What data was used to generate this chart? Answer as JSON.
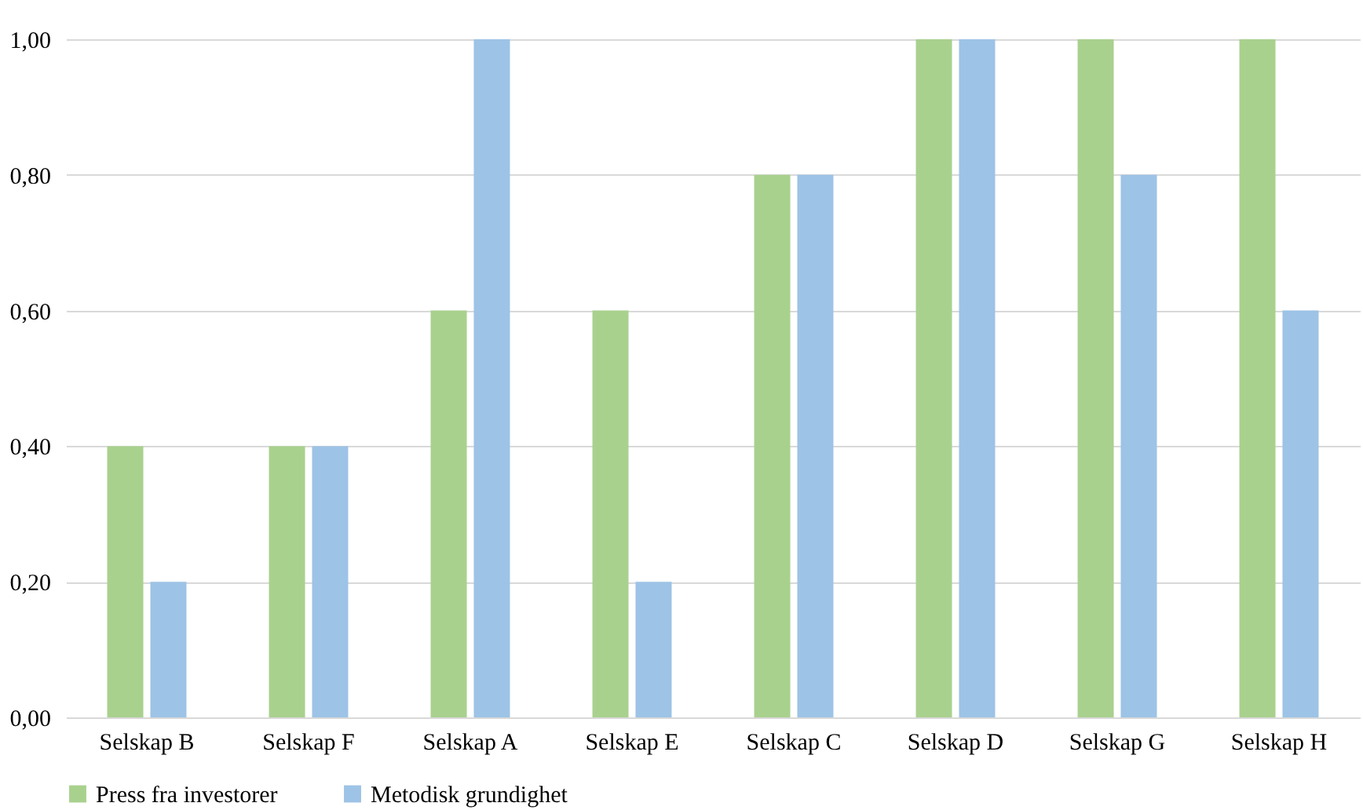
{
  "chart_data": {
    "type": "bar",
    "categories": [
      "Selskap B",
      "Selskap F",
      "Selskap A",
      "Selskap E",
      "Selskap C",
      "Selskap D",
      "Selskap G",
      "Selskap H"
    ],
    "series": [
      {
        "name": "Press fra investorer",
        "color": "#a9d18e",
        "values": [
          0.4,
          0.4,
          0.6,
          0.6,
          0.8,
          1.0,
          1.0,
          1.0
        ]
      },
      {
        "name": "Metodisk grundighet",
        "color": "#9dc3e6",
        "values": [
          0.2,
          0.4,
          1.0,
          0.2,
          0.8,
          1.0,
          0.8,
          0.6
        ]
      }
    ],
    "ylim": [
      0,
      1
    ],
    "yticks": [
      {
        "value": 0,
        "label": "0,00"
      },
      {
        "value": 0.2,
        "label": "0,20"
      },
      {
        "value": 0.4,
        "label": "0,40"
      },
      {
        "value": 0.6,
        "label": "0,60"
      },
      {
        "value": 0.8,
        "label": "0,80"
      },
      {
        "value": 1.0,
        "label": "1,00"
      }
    ],
    "grid": "y",
    "legend": "bottom"
  }
}
